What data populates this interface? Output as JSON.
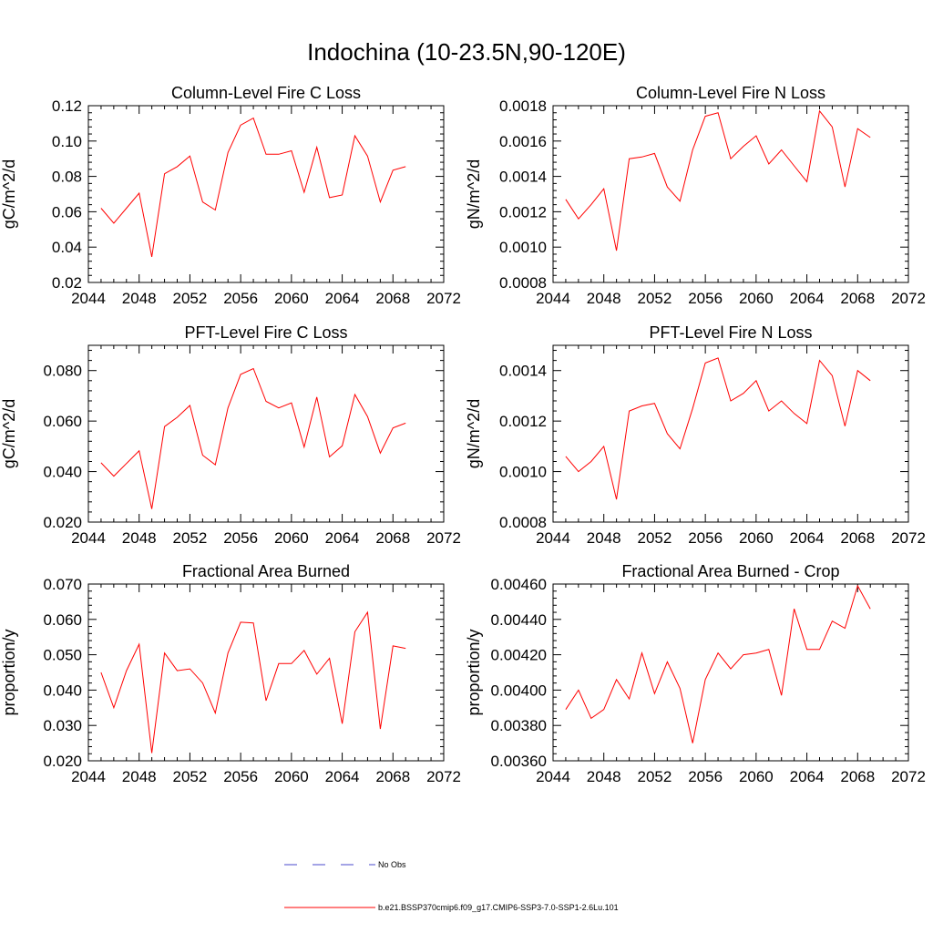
{
  "figure_title": "Indochina (10-23.5N,90-120E)",
  "colors": {
    "model_line": "#ff0000",
    "obs_line": "#4a4acc",
    "axis": "#000000",
    "background": "#ffffff"
  },
  "legend": {
    "entries": [
      {
        "label": "No Obs",
        "style": "dashed",
        "color": "#4a4acc"
      },
      {
        "label": "b.e21.BSSP370cmip6.f09_g17.CMIP6-SSP3-7.0-SSP1-2.6Lu.101",
        "style": "solid",
        "color": "#ff0000"
      }
    ]
  },
  "chart_data": [
    {
      "type": "line",
      "title": "Column-Level Fire C Loss",
      "ylabel": "gC/m^2/d",
      "xlim": [
        2044,
        2072
      ],
      "xticks": [
        "2044",
        "2048",
        "2052",
        "2056",
        "2060",
        "2064",
        "2068",
        "2072"
      ],
      "ylim": [
        0.02,
        0.12
      ],
      "yticks": [
        "0.02",
        "0.04",
        "0.06",
        "0.08",
        "0.10",
        "0.12"
      ],
      "x": [
        2045,
        2046,
        2047,
        2048,
        2049,
        2050,
        2051,
        2052,
        2053,
        2054,
        2055,
        2056,
        2057,
        2058,
        2059,
        2060,
        2061,
        2062,
        2063,
        2064,
        2065,
        2066,
        2067,
        2068,
        2069
      ],
      "series": [
        {
          "values": [
            0.062,
            0.0535,
            0.062,
            0.0705,
            0.0345,
            0.0815,
            0.0855,
            0.0915,
            0.0655,
            0.061,
            0.0935,
            0.109,
            0.113,
            0.0925,
            0.0925,
            0.0945,
            0.071,
            0.0965,
            0.068,
            0.0695,
            0.103,
            0.0915,
            0.0655,
            0.0835,
            0.0855
          ]
        }
      ]
    },
    {
      "type": "line",
      "title": "Column-Level Fire N Loss",
      "ylabel": "gN/m^2/d",
      "xlim": [
        2044,
        2072
      ],
      "xticks": [
        "2044",
        "2048",
        "2052",
        "2056",
        "2060",
        "2064",
        "2068",
        "2072"
      ],
      "ylim": [
        0.0008,
        0.0018
      ],
      "yticks": [
        "0.0008",
        "0.0010",
        "0.0012",
        "0.0014",
        "0.0016",
        "0.0018"
      ],
      "x": [
        2045,
        2046,
        2047,
        2048,
        2049,
        2050,
        2051,
        2052,
        2053,
        2054,
        2055,
        2056,
        2057,
        2058,
        2059,
        2060,
        2061,
        2062,
        2063,
        2064,
        2065,
        2066,
        2067,
        2068,
        2069
      ],
      "series": [
        {
          "values": [
            0.00127,
            0.00116,
            0.00124,
            0.00133,
            0.00098,
            0.0015,
            0.00151,
            0.00153,
            0.00134,
            0.00126,
            0.00155,
            0.00174,
            0.00176,
            0.0015,
            0.00157,
            0.00163,
            0.00147,
            0.00155,
            0.00146,
            0.00137,
            0.00177,
            0.00168,
            0.00134,
            0.00167,
            0.00162
          ]
        }
      ]
    },
    {
      "type": "line",
      "title": "PFT-Level Fire C Loss",
      "ylabel": "gC/m^2/d",
      "xlim": [
        2044,
        2072
      ],
      "xticks": [
        "2044",
        "2048",
        "2052",
        "2056",
        "2060",
        "2064",
        "2068",
        "2072"
      ],
      "ylim": [
        0.02,
        0.09
      ],
      "yticks": [
        "0.020",
        "0.040",
        "0.060",
        "0.080"
      ],
      "x": [
        2045,
        2046,
        2047,
        2048,
        2049,
        2050,
        2051,
        2052,
        2053,
        2054,
        2055,
        2056,
        2057,
        2058,
        2059,
        2060,
        2061,
        2062,
        2063,
        2064,
        2065,
        2066,
        2067,
        2068,
        2069
      ],
      "series": [
        {
          "values": [
            0.0435,
            0.0382,
            0.0432,
            0.0482,
            0.0252,
            0.0578,
            0.0615,
            0.0662,
            0.0465,
            0.0427,
            0.0652,
            0.0785,
            0.0808,
            0.0678,
            0.0652,
            0.0672,
            0.0497,
            0.0695,
            0.0458,
            0.0502,
            0.0705,
            0.0618,
            0.0473,
            0.0573,
            0.0592
          ]
        }
      ]
    },
    {
      "type": "line",
      "title": "PFT-Level Fire N Loss",
      "ylabel": "gN/m^2/d",
      "xlim": [
        2044,
        2072
      ],
      "xticks": [
        "2044",
        "2048",
        "2052",
        "2056",
        "2060",
        "2064",
        "2068",
        "2072"
      ],
      "ylim": [
        0.0008,
        0.0015
      ],
      "yticks": [
        "0.0008",
        "0.0010",
        "0.0012",
        "0.0014"
      ],
      "x": [
        2045,
        2046,
        2047,
        2048,
        2049,
        2050,
        2051,
        2052,
        2053,
        2054,
        2055,
        2056,
        2057,
        2058,
        2059,
        2060,
        2061,
        2062,
        2063,
        2064,
        2065,
        2066,
        2067,
        2068,
        2069
      ],
      "series": [
        {
          "values": [
            0.00106,
            0.001,
            0.00104,
            0.0011,
            0.00089,
            0.00124,
            0.00126,
            0.00127,
            0.00115,
            0.00109,
            0.00125,
            0.00143,
            0.00145,
            0.00128,
            0.00131,
            0.00136,
            0.00124,
            0.00128,
            0.00123,
            0.00119,
            0.00144,
            0.00138,
            0.00118,
            0.0014,
            0.00136
          ]
        }
      ]
    },
    {
      "type": "line",
      "title": "Fractional Area Burned",
      "ylabel": "proportion/y",
      "xlim": [
        2044,
        2072
      ],
      "xticks": [
        "2044",
        "2048",
        "2052",
        "2056",
        "2060",
        "2064",
        "2068",
        "2072"
      ],
      "ylim": [
        0.02,
        0.07
      ],
      "yticks": [
        "0.020",
        "0.030",
        "0.040",
        "0.050",
        "0.060",
        "0.070"
      ],
      "x": [
        2045,
        2046,
        2047,
        2048,
        2049,
        2050,
        2051,
        2052,
        2053,
        2054,
        2055,
        2056,
        2057,
        2058,
        2059,
        2060,
        2061,
        2062,
        2063,
        2064,
        2065,
        2066,
        2067,
        2068,
        2069
      ],
      "series": [
        {
          "values": [
            0.045,
            0.035,
            0.0455,
            0.053,
            0.0222,
            0.0505,
            0.0455,
            0.046,
            0.042,
            0.0335,
            0.0505,
            0.0592,
            0.059,
            0.037,
            0.0475,
            0.0475,
            0.0512,
            0.0445,
            0.049,
            0.0305,
            0.0565,
            0.062,
            0.029,
            0.0525,
            0.0518
          ]
        }
      ]
    },
    {
      "type": "line",
      "title": "Fractional Area Burned - Crop",
      "ylabel": "proportion/y",
      "xlim": [
        2044,
        2072
      ],
      "xticks": [
        "2044",
        "2048",
        "2052",
        "2056",
        "2060",
        "2064",
        "2068",
        "2072"
      ],
      "ylim": [
        0.0036,
        0.0046
      ],
      "yticks": [
        "0.00360",
        "0.00380",
        "0.00400",
        "0.00420",
        "0.00440",
        "0.00460"
      ],
      "x": [
        2045,
        2046,
        2047,
        2048,
        2049,
        2050,
        2051,
        2052,
        2053,
        2054,
        2055,
        2056,
        2057,
        2058,
        2059,
        2060,
        2061,
        2062,
        2063,
        2064,
        2065,
        2066,
        2067,
        2068,
        2069
      ],
      "series": [
        {
          "values": [
            0.00389,
            0.004,
            0.00384,
            0.00389,
            0.00406,
            0.00395,
            0.00421,
            0.00398,
            0.00416,
            0.00401,
            0.0037,
            0.00406,
            0.00421,
            0.00412,
            0.0042,
            0.00421,
            0.00423,
            0.00397,
            0.00446,
            0.00423,
            0.00423,
            0.00439,
            0.00435,
            0.00459,
            0.00446
          ]
        }
      ]
    }
  ]
}
